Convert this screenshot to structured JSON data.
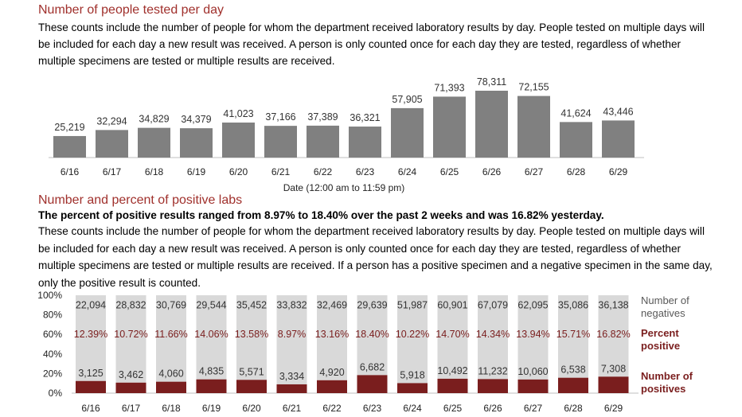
{
  "section1": {
    "title": "Number of people tested per day",
    "description": "These counts include the number of people for whom the department received laboratory results by day. People tested on multiple days will be included for each day a new result was received. A person is only counted once for each day they are tested, regardless of whether multiple specimens are tested or multiple results are received."
  },
  "section2": {
    "title": "Number and percent of positive labs",
    "summary": "The percent of positive results ranged from 8.97% to 18.40% over the past 2 weeks and was 16.82% yesterday.",
    "description": "These counts include the number of people for whom the department received laboratory results by day. People tested on multiple days will be included for each day a new result was received. A person is only counted once for each day they are tested, regardless of whether multiple specimens are tested or multiple results are received. If a person has a positive specimen and a negative specimen in the same day, only the positive result is counted."
  },
  "colors": {
    "title": "#a0302c",
    "bar_tested": "#808080",
    "bar_negatives": "#d9d9d9",
    "bar_positives": "#7a1e1e",
    "legend_gray": "#595959"
  },
  "chart_data": [
    {
      "type": "bar",
      "categories": [
        "6/16",
        "6/17",
        "6/18",
        "6/19",
        "6/20",
        "6/21",
        "6/22",
        "6/23",
        "6/24",
        "6/25",
        "6/26",
        "6/27",
        "6/28",
        "6/29"
      ],
      "values": [
        25219,
        32294,
        34829,
        34379,
        41023,
        37166,
        37389,
        36321,
        57905,
        71393,
        78311,
        72155,
        41624,
        43446
      ],
      "value_labels": [
        "25,219",
        "32,294",
        "34,829",
        "34,379",
        "41,023",
        "37,166",
        "37,389",
        "36,321",
        "57,905",
        "71,393",
        "78,311",
        "72,155",
        "41,624",
        "43,446"
      ],
      "xlabel": "Date (12:00 am to 11:59 pm)",
      "ylabel": "",
      "ylim": [
        0,
        78311
      ],
      "grid": false
    },
    {
      "type": "bar",
      "stacked": "percent",
      "categories": [
        "6/16",
        "6/17",
        "6/18",
        "6/19",
        "6/20",
        "6/21",
        "6/22",
        "6/23",
        "6/24",
        "6/25",
        "6/26",
        "6/27",
        "6/28",
        "6/29"
      ],
      "series": [
        {
          "name": "Number of positives",
          "values": [
            3125,
            3462,
            4060,
            4835,
            5571,
            3334,
            4920,
            6682,
            5918,
            10492,
            11232,
            10060,
            6538,
            7308
          ],
          "labels": [
            "3,125",
            "3,462",
            "4,060",
            "4,835",
            "5,571",
            "3,334",
            "4,920",
            "6,682",
            "5,918",
            "10,492",
            "11,232",
            "10,060",
            "6,538",
            "7,308"
          ]
        },
        {
          "name": "Number of negatives",
          "values": [
            22094,
            28832,
            30769,
            29544,
            35452,
            33832,
            32469,
            29639,
            51987,
            60901,
            67079,
            62095,
            35086,
            36138
          ],
          "labels": [
            "22,094",
            "28,832",
            "30,769",
            "29,544",
            "35,452",
            "33,832",
            "32,469",
            "29,639",
            "51,987",
            "60,901",
            "67,079",
            "62,095",
            "35,086",
            "36,138"
          ]
        }
      ],
      "percent_positive": {
        "name": "Percent positive",
        "values": [
          12.39,
          10.72,
          11.66,
          14.06,
          13.58,
          8.97,
          13.16,
          18.4,
          10.22,
          14.7,
          14.34,
          13.94,
          15.71,
          16.82
        ],
        "labels": [
          "12.39%",
          "10.72%",
          "11.66%",
          "14.06%",
          "13.58%",
          "8.97%",
          "13.16%",
          "18.40%",
          "10.22%",
          "14.70%",
          "14.34%",
          "13.94%",
          "15.71%",
          "16.82%"
        ]
      },
      "yticks": [
        "0%",
        "20%",
        "40%",
        "60%",
        "80%",
        "100%"
      ],
      "ylim": [
        0,
        100
      ],
      "legend": {
        "placement": "right",
        "negatives": [
          "Number of",
          "negatives"
        ],
        "percent": [
          "Percent",
          "positive"
        ],
        "positives": [
          "Number of",
          "positives"
        ]
      }
    }
  ]
}
